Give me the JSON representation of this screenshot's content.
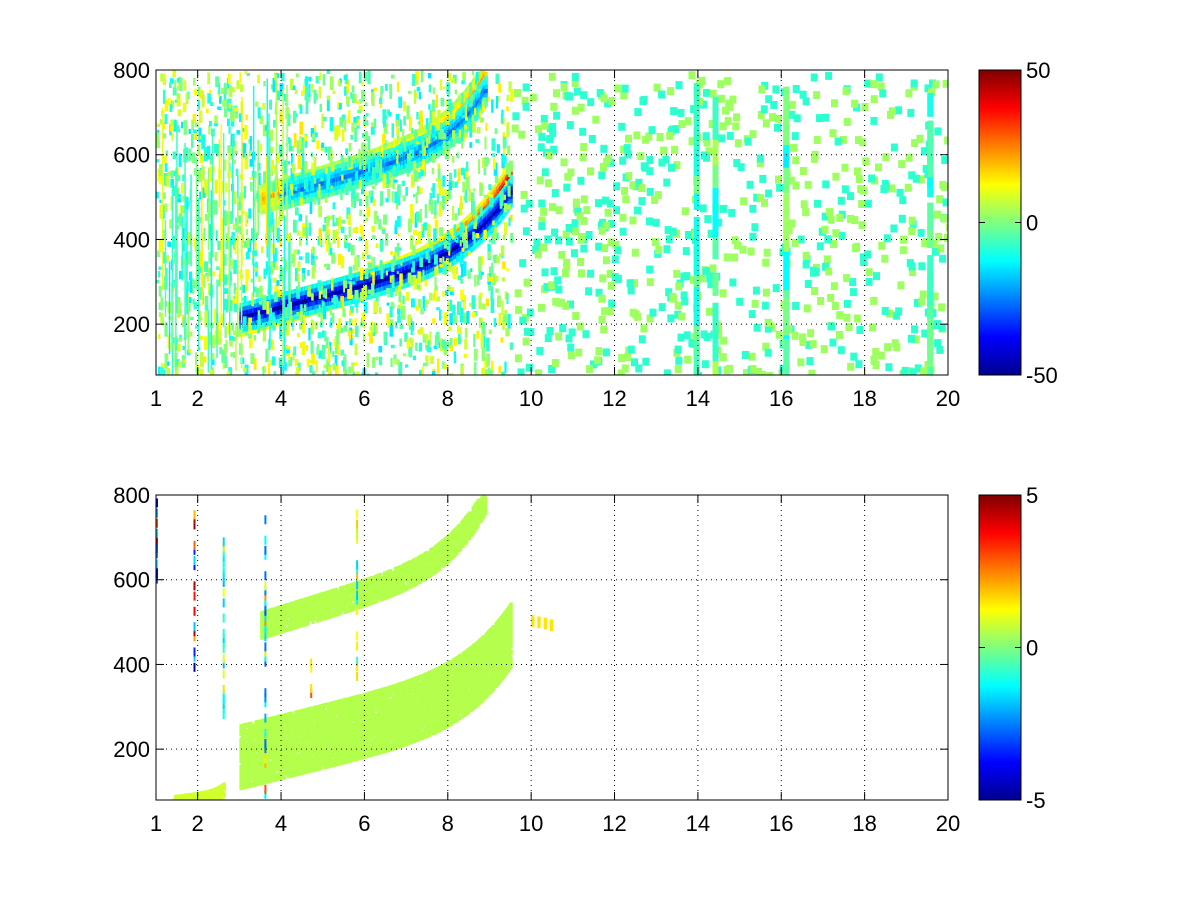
{
  "chart_data": [
    {
      "type": "heatmap",
      "title": "",
      "xlabel": "",
      "ylabel": "",
      "xlim": [
        1,
        20
      ],
      "ylim": [
        80,
        800
      ],
      "x_ticks": [
        1,
        2,
        4,
        6,
        8,
        10,
        12,
        14,
        16,
        18,
        20
      ],
      "y_ticks": [
        200,
        400,
        600,
        800
      ],
      "grid": true,
      "colormap": "jet",
      "colorbar": {
        "min": -50,
        "max": 50,
        "ticks": [
          50,
          0,
          -50
        ]
      },
      "features": [
        {
          "x_range": [
            3.0,
            9.5
          ],
          "y_start": 210,
          "y_end": 560,
          "value": 40
        },
        {
          "x_range": [
            3.0,
            9.5
          ],
          "y_start": 220,
          "y_end": 520,
          "value": -45
        },
        {
          "x_range": [
            3.5,
            8.9
          ],
          "y_start": 500,
          "y_end": 800,
          "value": 20
        },
        {
          "x_range": [
            4.0,
            8.9
          ],
          "y_start": 510,
          "y_end": 760,
          "value": -25
        },
        {
          "x_range": [
            1.0,
            9.5
          ],
          "y_start": 80,
          "y_end": 800,
          "value": 5,
          "pattern": "scattered"
        },
        {
          "x_range": [
            9.5,
            20.0
          ],
          "y_start": 80,
          "y_end": 800,
          "value": 3,
          "pattern": "sparse"
        }
      ]
    },
    {
      "type": "heatmap",
      "title": "",
      "xlabel": "",
      "ylabel": "",
      "xlim": [
        1,
        20
      ],
      "ylim": [
        80,
        800
      ],
      "x_ticks": [
        1,
        2,
        4,
        6,
        8,
        10,
        12,
        14,
        16,
        18,
        20
      ],
      "y_ticks": [
        200,
        400,
        600,
        800
      ],
      "grid": true,
      "colormap": "jet",
      "colorbar": {
        "min": -5,
        "max": 5,
        "ticks": [
          5,
          0,
          -5
        ]
      },
      "features": [
        {
          "x_range": [
            3.0,
            9.5
          ],
          "y_start": 190,
          "y_end": 480,
          "value": 0.5,
          "band_width": 150
        },
        {
          "x_range": [
            3.5,
            8.9
          ],
          "y_start": 500,
          "y_end": 800,
          "value": 0.5,
          "band_width": 60
        },
        {
          "x_range": [
            1.4,
            2.6
          ],
          "y_start": 80,
          "y_end": 110,
          "value": 0.8,
          "band_width": 25
        },
        {
          "x_range": [
            10.0,
            10.6
          ],
          "y_start": 510,
          "y_end": 490,
          "value": 1.5,
          "band_width": 20,
          "pattern": "sparse"
        }
      ],
      "spikes": [
        {
          "x": 1.0,
          "y_range": [
            600,
            790
          ],
          "value": -4
        },
        {
          "x": 1.9,
          "y_range": [
            380,
            770
          ],
          "value": 5
        },
        {
          "x": 3.6,
          "y_range": [
            80,
            760
          ],
          "value": -3
        },
        {
          "x": 5.8,
          "y_range": [
            370,
            760
          ],
          "value": 2
        },
        {
          "x": 2.6,
          "y_range": [
            280,
            720
          ],
          "value": -2
        },
        {
          "x": 4.7,
          "y_range": [
            330,
            410
          ],
          "value": 3
        }
      ]
    }
  ]
}
